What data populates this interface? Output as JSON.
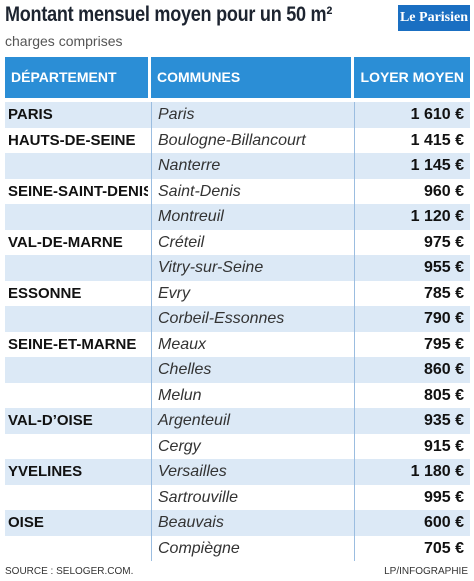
{
  "header": {
    "title": "Montant mensuel moyen pour un 50 m²",
    "subtitle": "charges comprises",
    "logo": "Le Parisien"
  },
  "table": {
    "columns": [
      "DÉPARTEMENT",
      "COMMUNES",
      "LOYER MOYEN"
    ],
    "groups": [
      {
        "department": "PARIS",
        "communes": [
          {
            "name": "Paris",
            "rent": "1 610 €"
          }
        ]
      },
      {
        "department": "HAUTS-DE-SEINE",
        "communes": [
          {
            "name": "Boulogne-Billancourt",
            "rent": "1 415 €"
          },
          {
            "name": "Nanterre",
            "rent": "1 145 €"
          }
        ]
      },
      {
        "department": "SEINE-SAINT-DENIS",
        "communes": [
          {
            "name": "Saint-Denis",
            "rent": "960 €"
          },
          {
            "name": "Montreuil",
            "rent": "1 120 €"
          }
        ]
      },
      {
        "department": "VAL-DE-MARNE",
        "communes": [
          {
            "name": "Créteil",
            "rent": "975 €"
          },
          {
            "name": "Vitry-sur-Seine",
            "rent": "955 €"
          }
        ]
      },
      {
        "department": "ESSONNE",
        "communes": [
          {
            "name": "Evry",
            "rent": "785 €"
          },
          {
            "name": "Corbeil-Essonnes",
            "rent": "790 €"
          }
        ]
      },
      {
        "department": "SEINE-ET-MARNE",
        "communes": [
          {
            "name": "Meaux",
            "rent": "795 €"
          },
          {
            "name": "Chelles",
            "rent": "860 €"
          },
          {
            "name": "Melun",
            "rent": "805 €"
          }
        ]
      },
      {
        "department": "VAL-D’OISE",
        "communes": [
          {
            "name": "Argenteuil",
            "rent": "935 €"
          },
          {
            "name": "Cergy",
            "rent": "915 €"
          }
        ]
      },
      {
        "department": "YVELINES",
        "communes": [
          {
            "name": "Versailles",
            "rent": "1 180 €"
          },
          {
            "name": "Sartrouville",
            "rent": "995 €"
          }
        ]
      },
      {
        "department": "OISE",
        "communes": [
          {
            "name": "Beauvais",
            "rent": "600 €"
          },
          {
            "name": "Compiègne",
            "rent": "705 €"
          }
        ]
      }
    ]
  },
  "footer": {
    "source": "SOURCE : SELOGER.COM.",
    "credit": "LP/INFOGRAPHIE"
  }
}
